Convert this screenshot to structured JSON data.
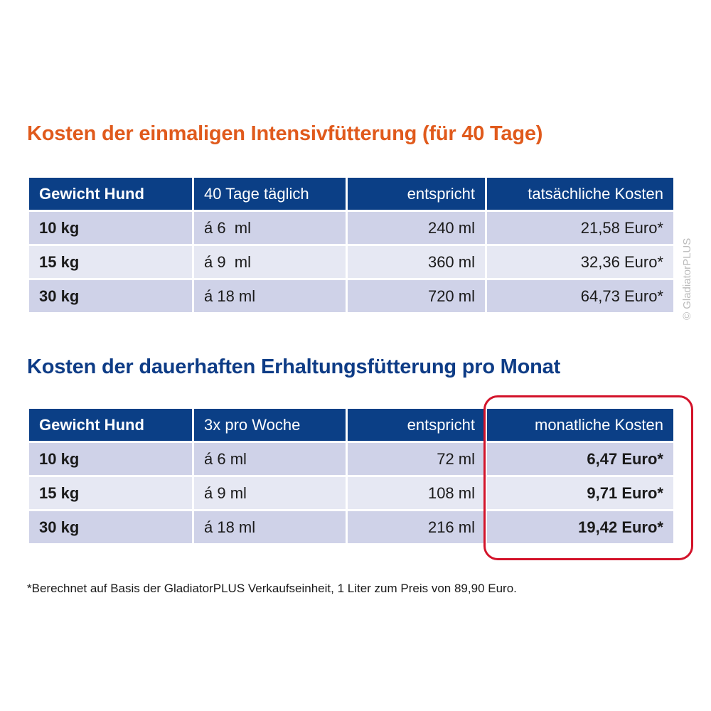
{
  "section1": {
    "title": "Kosten der einmaligen Intensivfütterung (für 40 Tage)",
    "headers": [
      "Gewicht Hund",
      "40 Tage täglich",
      "entspricht",
      "tatsächliche Kosten"
    ],
    "rows": [
      [
        "10 kg",
        "á 6  ml",
        "240 ml",
        "21,58 Euro*"
      ],
      [
        "15 kg",
        "á 9  ml",
        "360 ml",
        "32,36 Euro*"
      ],
      [
        "30 kg",
        "á 18 ml",
        "720 ml",
        "64,73 Euro*"
      ]
    ]
  },
  "section2": {
    "title": "Kosten der dauerhaften Erhaltungsfütterung pro Monat",
    "headers": [
      "Gewicht Hund",
      "3x pro Woche",
      "entspricht",
      "monatliche Kosten"
    ],
    "rows": [
      [
        "10 kg",
        "á 6 ml",
        "72 ml",
        "6,47 Euro*"
      ],
      [
        "15 kg",
        "á 9 ml",
        "108 ml",
        "9,71 Euro*"
      ],
      [
        "30 kg",
        "á 18 ml",
        "216 ml",
        "19,42 Euro*"
      ]
    ]
  },
  "footnote": "*Berechnet auf Basis der GladiatorPLUS Verkaufseinheit, 1 Liter zum Preis von 89,90 Euro.",
  "watermark": "© GladiatorPLUS",
  "colors": {
    "header": "#0b3f86",
    "title1": "#e05a1c",
    "title2": "#0e3c86",
    "highlight": "#d3132a"
  }
}
